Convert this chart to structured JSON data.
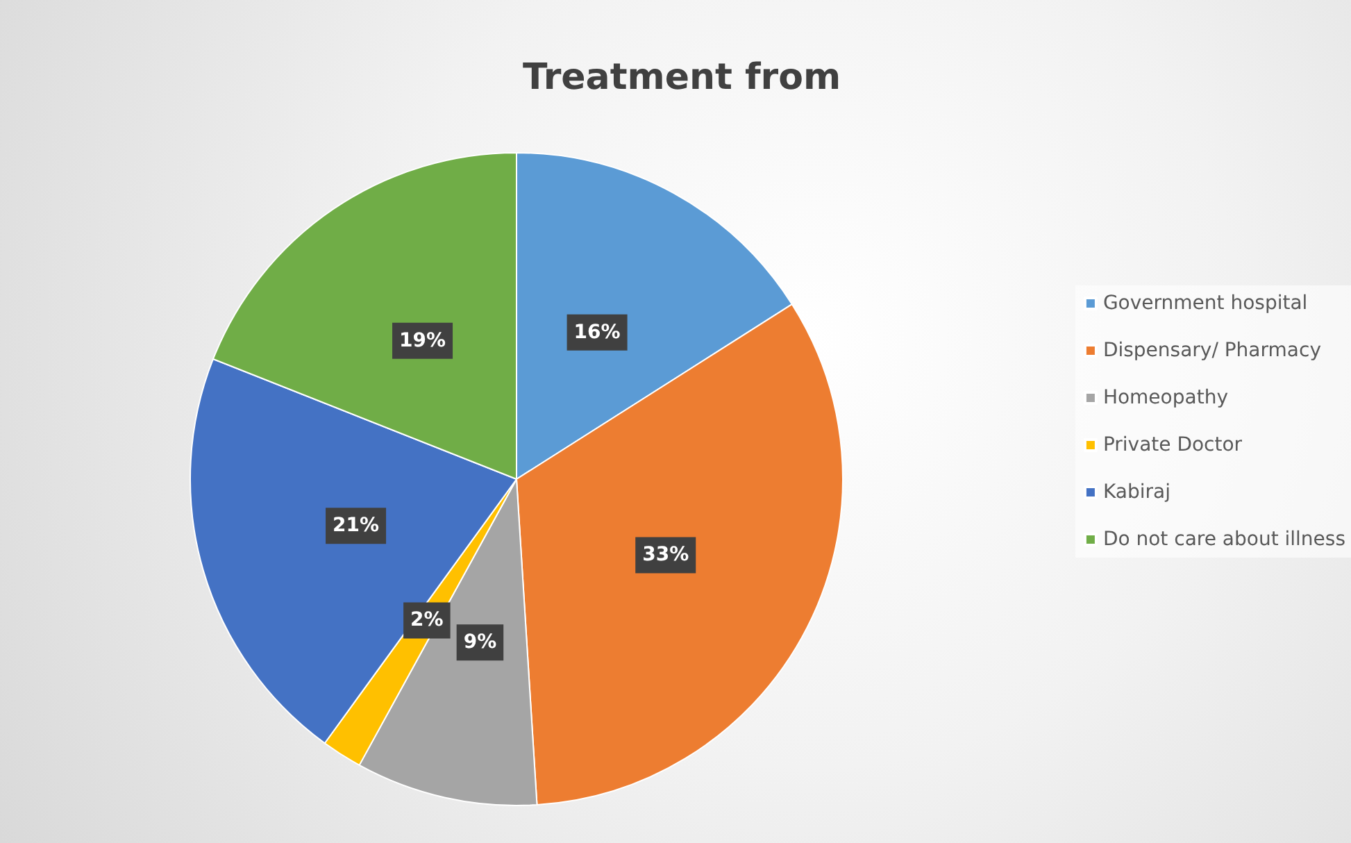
{
  "chart_data": {
    "type": "pie",
    "title": "Treatment from",
    "categories": [
      "Government hospital",
      "Dispensary/ Pharmacy",
      "Homeopathy",
      "Private Doctor",
      "Kabiraj",
      "Do not care about illness"
    ],
    "values": [
      16,
      33,
      9,
      2,
      21,
      19
    ],
    "value_labels": [
      "16%",
      "33%",
      "9%",
      "2%",
      "21%",
      "19%"
    ],
    "colors": [
      "#5b9bd5",
      "#ed7d31",
      "#a5a5a5",
      "#ffc000",
      "#4472c4",
      "#70ad47"
    ],
    "legend": "right"
  }
}
